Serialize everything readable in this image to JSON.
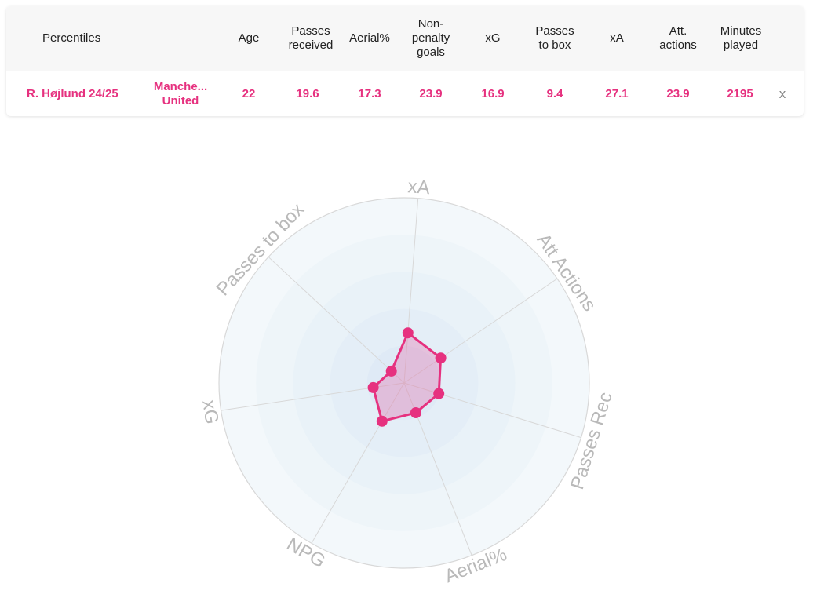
{
  "table": {
    "headers": {
      "percentiles": "Percentiles",
      "age": "Age",
      "passes_received": "Passes\nreceived",
      "aerial": "Aerial%",
      "npg": "Non-\npenalty\ngoals",
      "xg": "xG",
      "passes_box": "Passes\nto box",
      "xa": "xA",
      "att_actions": "Att.\nactions",
      "minutes": "Minutes\nplayed"
    },
    "row": {
      "player": "R. Højlund 24/25",
      "team": "Manche...\nUnited",
      "age": "22",
      "passes_received": "19.6",
      "aerial": "17.3",
      "npg": "23.9",
      "xg": "16.9",
      "passes_box": "9.4",
      "xa": "27.1",
      "att_actions": "23.9",
      "minutes": "2195",
      "remove": "x"
    }
  },
  "colors": {
    "accent": "#e6317f",
    "fill": "rgba(226,60,140,0.25)",
    "axis_label": "#b9b9b9",
    "ring": "#d8d8d8"
  },
  "chart_data": {
    "type": "radar",
    "axes": [
      "xA",
      "Att Actions",
      "Passes Rec",
      "Aerial%",
      "NPG",
      "xG",
      "Passes to box"
    ],
    "series": [
      {
        "name": "R. Højlund 24/25",
        "values": [
          27.1,
          23.9,
          19.6,
          17.3,
          23.9,
          16.9,
          9.4
        ]
      }
    ],
    "range": [
      0,
      100
    ],
    "grid": true
  }
}
